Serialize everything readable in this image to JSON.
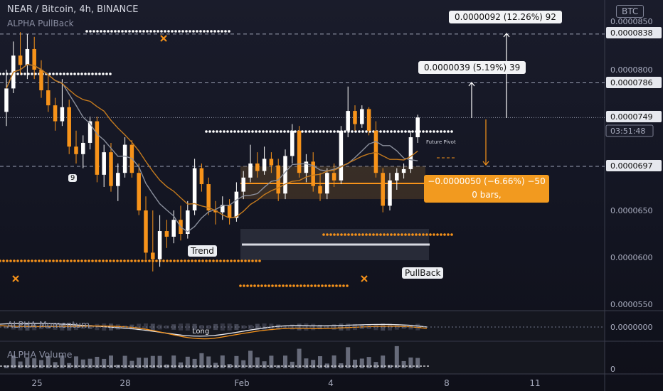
{
  "header": {
    "title": "NEAR / Bitcoin, 4h, BINANCE",
    "indicator": "ALPHA PullBack",
    "currency_badge": "BTC"
  },
  "panes": {
    "momentum_title": "ALPHA Momentum",
    "momentum_axis_label": "0.0000000",
    "momentum_signal": "Long",
    "volume_title": "ALPHA Volume",
    "volume_axis_label": "0"
  },
  "price_axis": {
    "labels": [
      "0.0000850",
      "0.0000838",
      "0.0000800",
      "0.0000786",
      "0.0000749",
      "03:51:48",
      "0.0000697",
      "0.0000650",
      "0.0000600",
      "0.0000550"
    ],
    "current_price": "0.0000749",
    "countdown": "03:51:48"
  },
  "time_axis": {
    "labels": [
      "25",
      "28",
      "Feb",
      "4",
      "8",
      "11"
    ]
  },
  "annotations": {
    "target_2": "0.0000092 (12.26%) 92",
    "target_1": "0.0000039 (5.19%) 39",
    "stop_line1": "−0.0000050 (−6.66%) −50",
    "stop_line2": "0 bars,",
    "trend_label": "Trend",
    "pullback_label": "PullBack",
    "future_pivot": "Future Pivot",
    "count_label": "9"
  },
  "colors": {
    "up_candle": "#ffffff",
    "down_candle": "#f7931a",
    "accent_orange": "#f7931a",
    "ma_gray": "#8a8f9c",
    "ma_orange": "#c47a1e",
    "background": "#161826"
  },
  "chart_data": {
    "type": "candlestick",
    "y_scale": "price in BTC",
    "ylim": [
      5.45e-05,
      8.6e-05
    ],
    "x_ticks": [
      "25",
      "28",
      "Feb",
      "4",
      "8",
      "11"
    ],
    "candles": [
      {
        "o": 7.55e-05,
        "h": 8e-05,
        "l": 7.4e-05,
        "c": 7.8e-05
      },
      {
        "o": 7.8e-05,
        "h": 8.3e-05,
        "l": 7.75e-05,
        "c": 8.15e-05
      },
      {
        "o": 8.15e-05,
        "h": 8.4e-05,
        "l": 7.95e-05,
        "c": 8.05e-05
      },
      {
        "o": 8.05e-05,
        "h": 8.38e-05,
        "l": 7.9e-05,
        "c": 8.22e-05
      },
      {
        "o": 8.22e-05,
        "h": 8.35e-05,
        "l": 7.9e-05,
        "c": 8e-05
      },
      {
        "o": 8e-05,
        "h": 8.1e-05,
        "l": 7.7e-05,
        "c": 7.78e-05
      },
      {
        "o": 7.78e-05,
        "h": 7.95e-05,
        "l": 7.55e-05,
        "c": 7.62e-05
      },
      {
        "o": 7.62e-05,
        "h": 7.7e-05,
        "l": 7.35e-05,
        "c": 7.45e-05
      },
      {
        "o": 7.45e-05,
        "h": 7.9e-05,
        "l": 7.4e-05,
        "c": 7.6e-05
      },
      {
        "o": 7.6e-05,
        "h": 7.68e-05,
        "l": 7.1e-05,
        "c": 7.18e-05
      },
      {
        "o": 7.18e-05,
        "h": 7.35e-05,
        "l": 7e-05,
        "c": 7.1e-05
      },
      {
        "o": 7.1e-05,
        "h": 7.3e-05,
        "l": 6.95e-05,
        "c": 7.22e-05
      },
      {
        "o": 7.22e-05,
        "h": 7.5e-05,
        "l": 7.15e-05,
        "c": 7.45e-05
      },
      {
        "o": 7.45e-05,
        "h": 7.5e-05,
        "l": 6.8e-05,
        "c": 6.88e-05
      },
      {
        "o": 6.88e-05,
        "h": 7.2e-05,
        "l": 6.75e-05,
        "c": 7.12e-05
      },
      {
        "o": 7.12e-05,
        "h": 7.22e-05,
        "l": 6.7e-05,
        "c": 6.76e-05
      },
      {
        "o": 6.76e-05,
        "h": 7e-05,
        "l": 6.6e-05,
        "c": 6.9e-05
      },
      {
        "o": 6.9e-05,
        "h": 7.28e-05,
        "l": 6.85e-05,
        "c": 7.2e-05
      },
      {
        "o": 7.2e-05,
        "h": 7.25e-05,
        "l": 6.85e-05,
        "c": 6.9e-05
      },
      {
        "o": 6.9e-05,
        "h": 7e-05,
        "l": 6.45e-05,
        "c": 6.5e-05
      },
      {
        "o": 6.5e-05,
        "h": 6.65e-05,
        "l": 5.98e-05,
        "c": 6.05e-05
      },
      {
        "o": 6.05e-05,
        "h": 6.5e-05,
        "l": 5.85e-05,
        "c": 5.98e-05
      },
      {
        "o": 5.98e-05,
        "h": 6.45e-05,
        "l": 5.9e-05,
        "c": 6.28e-05
      },
      {
        "o": 6.28e-05,
        "h": 6.4e-05,
        "l": 6.1e-05,
        "c": 6.22e-05
      },
      {
        "o": 6.22e-05,
        "h": 6.5e-05,
        "l": 6.15e-05,
        "c": 6.4e-05
      },
      {
        "o": 6.4e-05,
        "h": 6.55e-05,
        "l": 6.18e-05,
        "c": 6.25e-05
      },
      {
        "o": 6.25e-05,
        "h": 6.6e-05,
        "l": 6.2e-05,
        "c": 6.5e-05
      },
      {
        "o": 6.5e-05,
        "h": 7.05e-05,
        "l": 6.45e-05,
        "c": 6.95e-05
      },
      {
        "o": 6.95e-05,
        "h": 7e-05,
        "l": 6.7e-05,
        "c": 6.78e-05
      },
      {
        "o": 6.78e-05,
        "h": 6.85e-05,
        "l": 6.45e-05,
        "c": 6.5e-05
      },
      {
        "o": 6.5e-05,
        "h": 6.6e-05,
        "l": 6.35e-05,
        "c": 6.48e-05
      },
      {
        "o": 6.48e-05,
        "h": 6.65e-05,
        "l": 6.4e-05,
        "c": 6.56e-05
      },
      {
        "o": 6.56e-05,
        "h": 6.62e-05,
        "l": 6.35e-05,
        "c": 6.42e-05
      },
      {
        "o": 6.42e-05,
        "h": 6.8e-05,
        "l": 6.38e-05,
        "c": 6.7e-05
      },
      {
        "o": 6.7e-05,
        "h": 6.92e-05,
        "l": 6.62e-05,
        "c": 6.85e-05
      },
      {
        "o": 6.85e-05,
        "h": 7.2e-05,
        "l": 6.8e-05,
        "c": 7e-05
      },
      {
        "o": 7e-05,
        "h": 7.12e-05,
        "l": 6.85e-05,
        "c": 6.92e-05
      },
      {
        "o": 6.92e-05,
        "h": 7.18e-05,
        "l": 6.88e-05,
        "c": 7.05e-05
      },
      {
        "o": 7.05e-05,
        "h": 7.12e-05,
        "l": 6.9e-05,
        "c": 6.98e-05
      },
      {
        "o": 6.98e-05,
        "h": 7.05e-05,
        "l": 6.6e-05,
        "c": 6.68e-05
      },
      {
        "o": 6.68e-05,
        "h": 7.15e-05,
        "l": 6.62e-05,
        "c": 7.08e-05
      },
      {
        "o": 7.08e-05,
        "h": 7.42e-05,
        "l": 7e-05,
        "c": 7.35e-05
      },
      {
        "o": 7.35e-05,
        "h": 7.4e-05,
        "l": 6.85e-05,
        "c": 6.9e-05
      },
      {
        "o": 6.9e-05,
        "h": 7.1e-05,
        "l": 6.8e-05,
        "c": 7.02e-05
      },
      {
        "o": 7.02e-05,
        "h": 7.12e-05,
        "l": 6.7e-05,
        "c": 6.76e-05
      },
      {
        "o": 6.76e-05,
        "h": 6.9e-05,
        "l": 6.6e-05,
        "c": 6.68e-05
      },
      {
        "o": 6.68e-05,
        "h": 6.95e-05,
        "l": 6.62e-05,
        "c": 6.9e-05
      },
      {
        "o": 6.9e-05,
        "h": 7e-05,
        "l": 6.75e-05,
        "c": 6.82e-05
      },
      {
        "o": 6.82e-05,
        "h": 7.4e-05,
        "l": 6.78e-05,
        "c": 7.35e-05
      },
      {
        "o": 7.35e-05,
        "h": 7.82e-05,
        "l": 7.28e-05,
        "c": 7.56e-05
      },
      {
        "o": 7.56e-05,
        "h": 7.62e-05,
        "l": 7.35e-05,
        "c": 7.42e-05
      },
      {
        "o": 7.42e-05,
        "h": 7.62e-05,
        "l": 7.38e-05,
        "c": 7.58e-05
      },
      {
        "o": 7.58e-05,
        "h": 7.6e-05,
        "l": 7.3e-05,
        "c": 7.35e-05
      },
      {
        "o": 7.35e-05,
        "h": 7.45e-05,
        "l": 6.85e-05,
        "c": 6.9e-05
      },
      {
        "o": 6.9e-05,
        "h": 6.95e-05,
        "l": 6.48e-05,
        "c": 6.55e-05
      },
      {
        "o": 6.55e-05,
        "h": 6.9e-05,
        "l": 6.5e-05,
        "c": 6.82e-05
      },
      {
        "o": 6.82e-05,
        "h": 6.95e-05,
        "l": 6.72e-05,
        "c": 6.9e-05
      },
      {
        "o": 6.9e-05,
        "h": 7e-05,
        "l": 6.84e-05,
        "c": 6.94e-05
      },
      {
        "o": 6.94e-05,
        "h": 7.35e-05,
        "l": 6.9e-05,
        "c": 7.28e-05
      },
      {
        "o": 7.28e-05,
        "h": 7.52e-05,
        "l": 7.22e-05,
        "c": 7.49e-05
      }
    ],
    "levels": {
      "pullback_upper": 8.38e-05,
      "target_1_price": 7.86e-05,
      "current": 7.49e-05,
      "entry": 6.97e-05,
      "stop_zone": 6.8e-05
    }
  }
}
